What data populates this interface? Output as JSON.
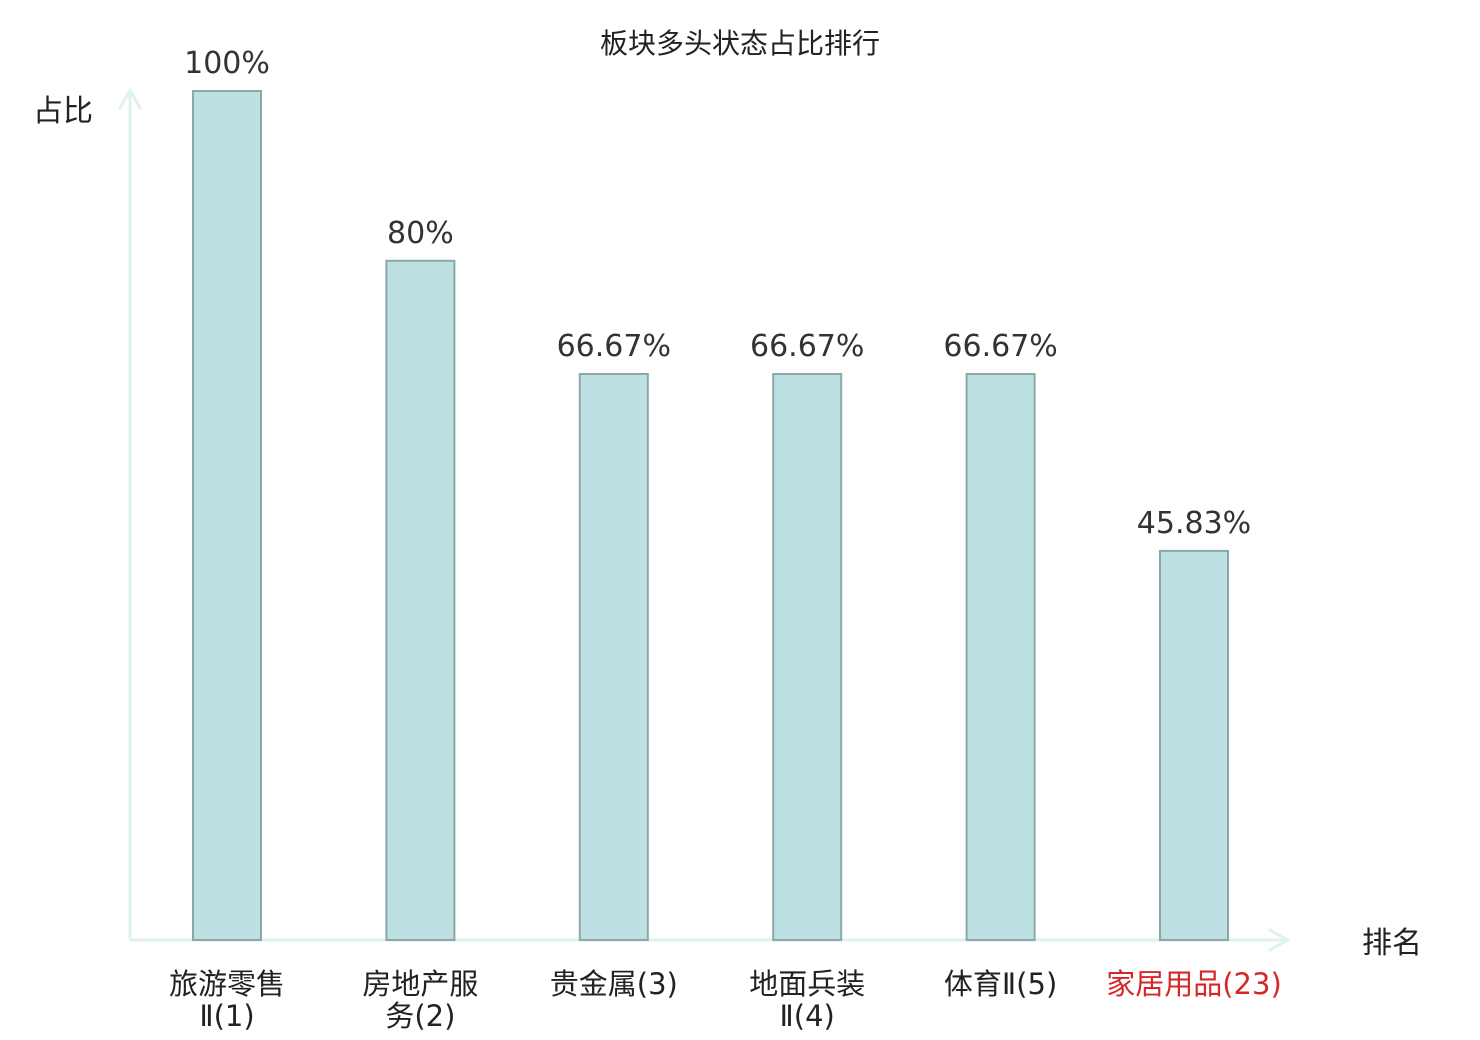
{
  "chart_data": {
    "type": "bar",
    "title": "板块多头状态占比排行",
    "xlabel": "排名",
    "ylabel": "占比",
    "ylim": [
      0,
      100
    ],
    "grid": false,
    "legend": "none",
    "categories": [
      [
        "旅游零售",
        "Ⅱ(1)"
      ],
      [
        "房地产服",
        "务(2)"
      ],
      [
        "贵金属(3)"
      ],
      [
        "地面兵装",
        "Ⅱ(4)"
      ],
      [
        "体育Ⅱ(5)"
      ],
      [
        "家居用品(23)"
      ]
    ],
    "values": [
      100,
      80,
      66.67,
      66.67,
      66.67,
      45.83
    ],
    "value_labels": [
      "100%",
      "80%",
      "66.67%",
      "66.67%",
      "66.67%",
      "45.83%"
    ],
    "highlight_index": 5,
    "colors": {
      "bar_fill": "#bde0e3",
      "bar_stroke": "#8aa8aa",
      "axis": "#e0f2ef",
      "label": "#222222",
      "highlight": "#d62728"
    }
  }
}
